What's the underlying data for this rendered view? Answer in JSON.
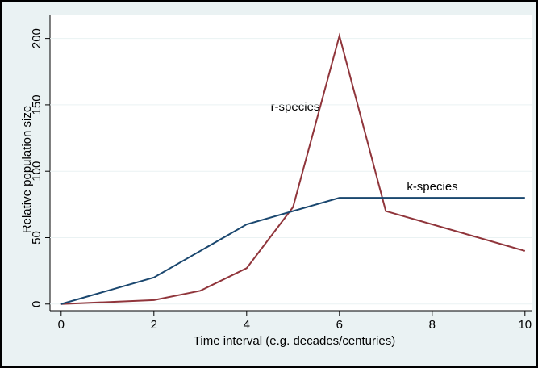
{
  "chart_data": {
    "type": "line",
    "x_label": "Time interval (e.g. decades/centuries)",
    "y_label": "Relative population size",
    "series": [
      {
        "name": "r-species",
        "color": "#90353b",
        "x": [
          0,
          2,
          3,
          4,
          5,
          6,
          7,
          10
        ],
        "values": [
          0,
          3,
          10,
          27,
          73,
          202,
          70,
          40
        ]
      },
      {
        "name": "k-species",
        "color": "#1a476f",
        "x": [
          0,
          2,
          4,
          6,
          10
        ],
        "values": [
          0,
          20,
          60,
          80,
          80
        ]
      }
    ],
    "xlim": [
      -0.24,
      10.16
    ],
    "ylim": [
      -5,
      218
    ],
    "xticks": [
      0,
      2,
      4,
      6,
      8,
      10
    ],
    "yticks": [
      0,
      50,
      100,
      150,
      200
    ],
    "grid": true
  }
}
